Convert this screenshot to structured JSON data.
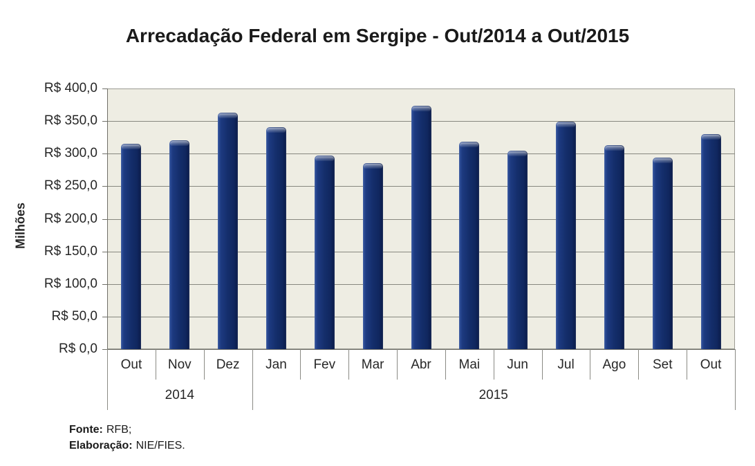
{
  "title": "Arrecadação Federal em Sergipe - Out/2014 a Out/2015",
  "chart_data": {
    "type": "bar",
    "title": "Arrecadação Federal em Sergipe - Out/2014 a Out/2015",
    "xlabel": "",
    "ylabel": "Milhões",
    "ylim": [
      0,
      400
    ],
    "y_step": 50,
    "y_tick_labels": [
      "R$ 400,0",
      "R$ 350,0",
      "R$ 300,0",
      "R$ 250,0",
      "R$ 200,0",
      "R$ 150,0",
      "R$ 100,0",
      "R$ 50,0",
      "R$ 0,0"
    ],
    "categories": [
      "Out",
      "Nov",
      "Dez",
      "Jan",
      "Fev",
      "Mar",
      "Abr",
      "Mai",
      "Jun",
      "Jul",
      "Ago",
      "Set",
      "Out"
    ],
    "year_groups": [
      {
        "label": "2014",
        "span": 3
      },
      {
        "label": "2015",
        "span": 10
      }
    ],
    "values": [
      315,
      320,
      363,
      341,
      297,
      285,
      373,
      318,
      305,
      349,
      313,
      294,
      330
    ],
    "grid": true,
    "legend": "none",
    "bar_color": "#142e6b",
    "plot_bg": "#eeede3",
    "gridline_color": "#87877f"
  },
  "footer": {
    "source_label": "Fonte:",
    "source_value": "RFB;",
    "elaboration_label": "Elaboração:",
    "elaboration_value": "NIE/FIES."
  }
}
